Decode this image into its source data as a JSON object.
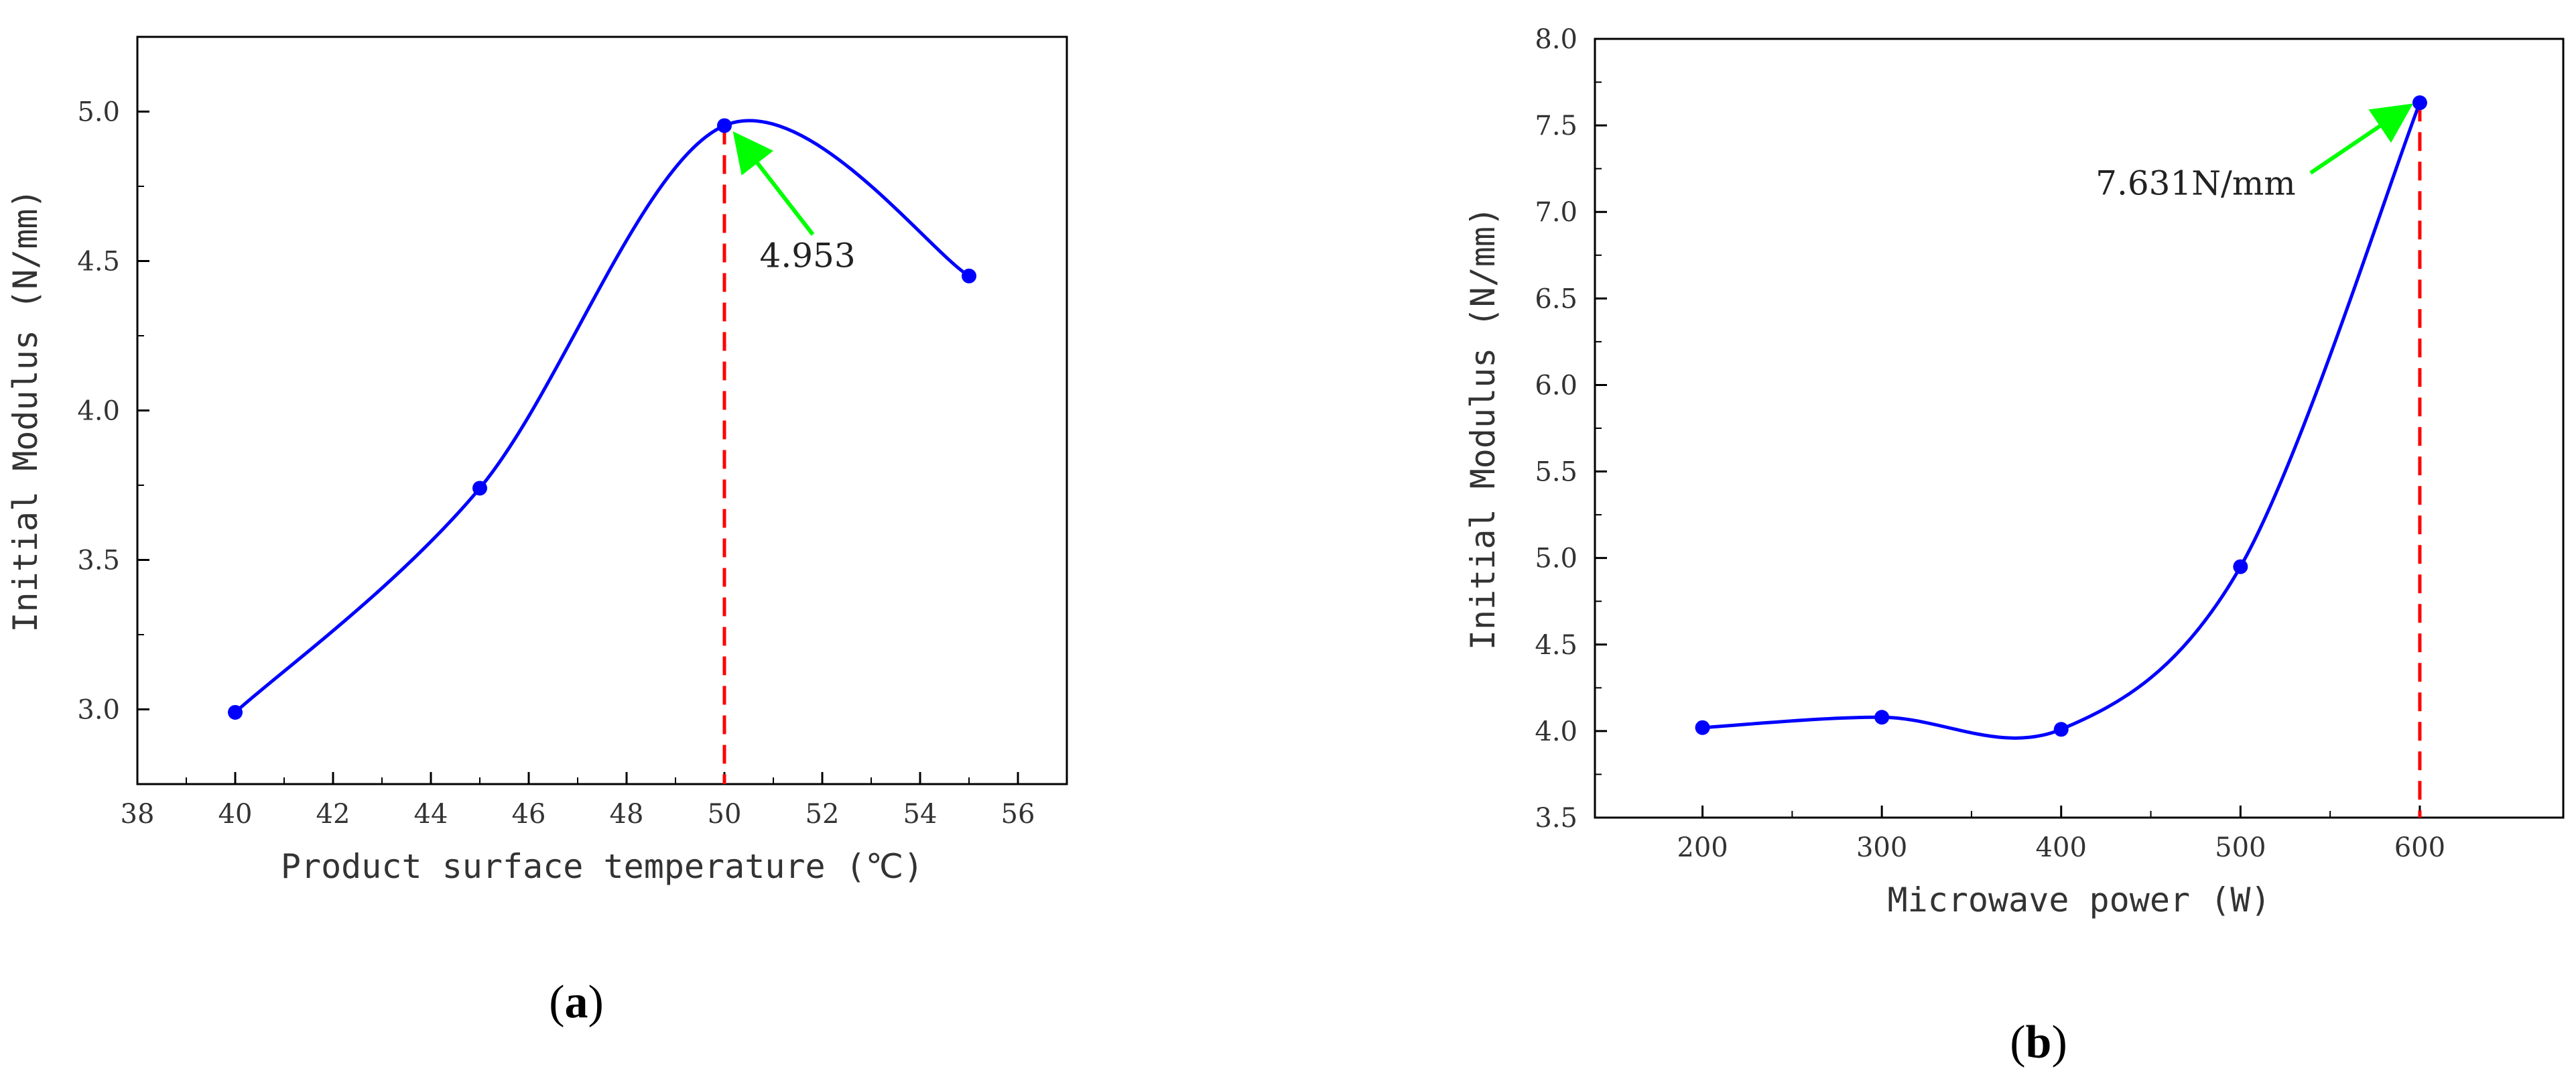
{
  "chart_data": [
    {
      "type": "line",
      "panel_label_open": "(",
      "panel_label_letter": "a",
      "panel_label_close": ")",
      "xlabel": "Product surface temperature (℃)",
      "ylabel": "Initial Modulus (N/mm)",
      "xlim": [
        38,
        57
      ],
      "ylim": [
        2.75,
        5.25
      ],
      "xticks": [
        38,
        40,
        42,
        44,
        46,
        48,
        50,
        52,
        54,
        56
      ],
      "xtick_labels": [
        "38",
        "40",
        "42",
        "44",
        "46",
        "48",
        "50",
        "52",
        "54",
        "56"
      ],
      "yticks": [
        3.0,
        3.5,
        4.0,
        4.5,
        5.0
      ],
      "ytick_labels": [
        "3.0",
        "3.5",
        "4.0",
        "4.5",
        "5.0"
      ],
      "x": [
        40,
        45,
        50,
        55
      ],
      "y": [
        2.99,
        3.74,
        4.953,
        4.45
      ],
      "peak": {
        "x": 50,
        "y": 4.953
      },
      "annotation": {
        "text": "4.953",
        "text_x": 51.7,
        "text_y": 4.48
      },
      "colors": {
        "line": "#0000ff",
        "marker": "#0000ff",
        "dashed": "#ff0000",
        "arrow": "#00ff00"
      }
    },
    {
      "type": "line",
      "panel_label_open": "(",
      "panel_label_letter": "b",
      "panel_label_close": ")",
      "xlabel": "Microwave power (W)",
      "ylabel": "Initial Modulus (N/mm)",
      "xlim": [
        140,
        680
      ],
      "ylim": [
        3.5,
        8.0
      ],
      "xticks": [
        200,
        300,
        400,
        500,
        600
      ],
      "xtick_labels": [
        "200",
        "300",
        "400",
        "500",
        "600"
      ],
      "yticks": [
        3.5,
        4.0,
        4.5,
        5.0,
        5.5,
        6.0,
        6.5,
        7.0,
        7.5,
        8.0
      ],
      "ytick_labels": [
        "3.5",
        "4.0",
        "4.5",
        "5.0",
        "5.5",
        "6.0",
        "6.5",
        "7.0",
        "7.5",
        "8.0"
      ],
      "x": [
        200,
        300,
        400,
        500,
        600
      ],
      "y": [
        4.02,
        4.08,
        4.01,
        4.95,
        7.631
      ],
      "peak": {
        "x": 600,
        "y": 7.631
      },
      "annotation": {
        "text": "7.631N/mm",
        "text_x": 475,
        "text_y": 7.1
      },
      "colors": {
        "line": "#0000ff",
        "marker": "#0000ff",
        "dashed": "#ff0000",
        "arrow": "#00ff00"
      }
    }
  ]
}
